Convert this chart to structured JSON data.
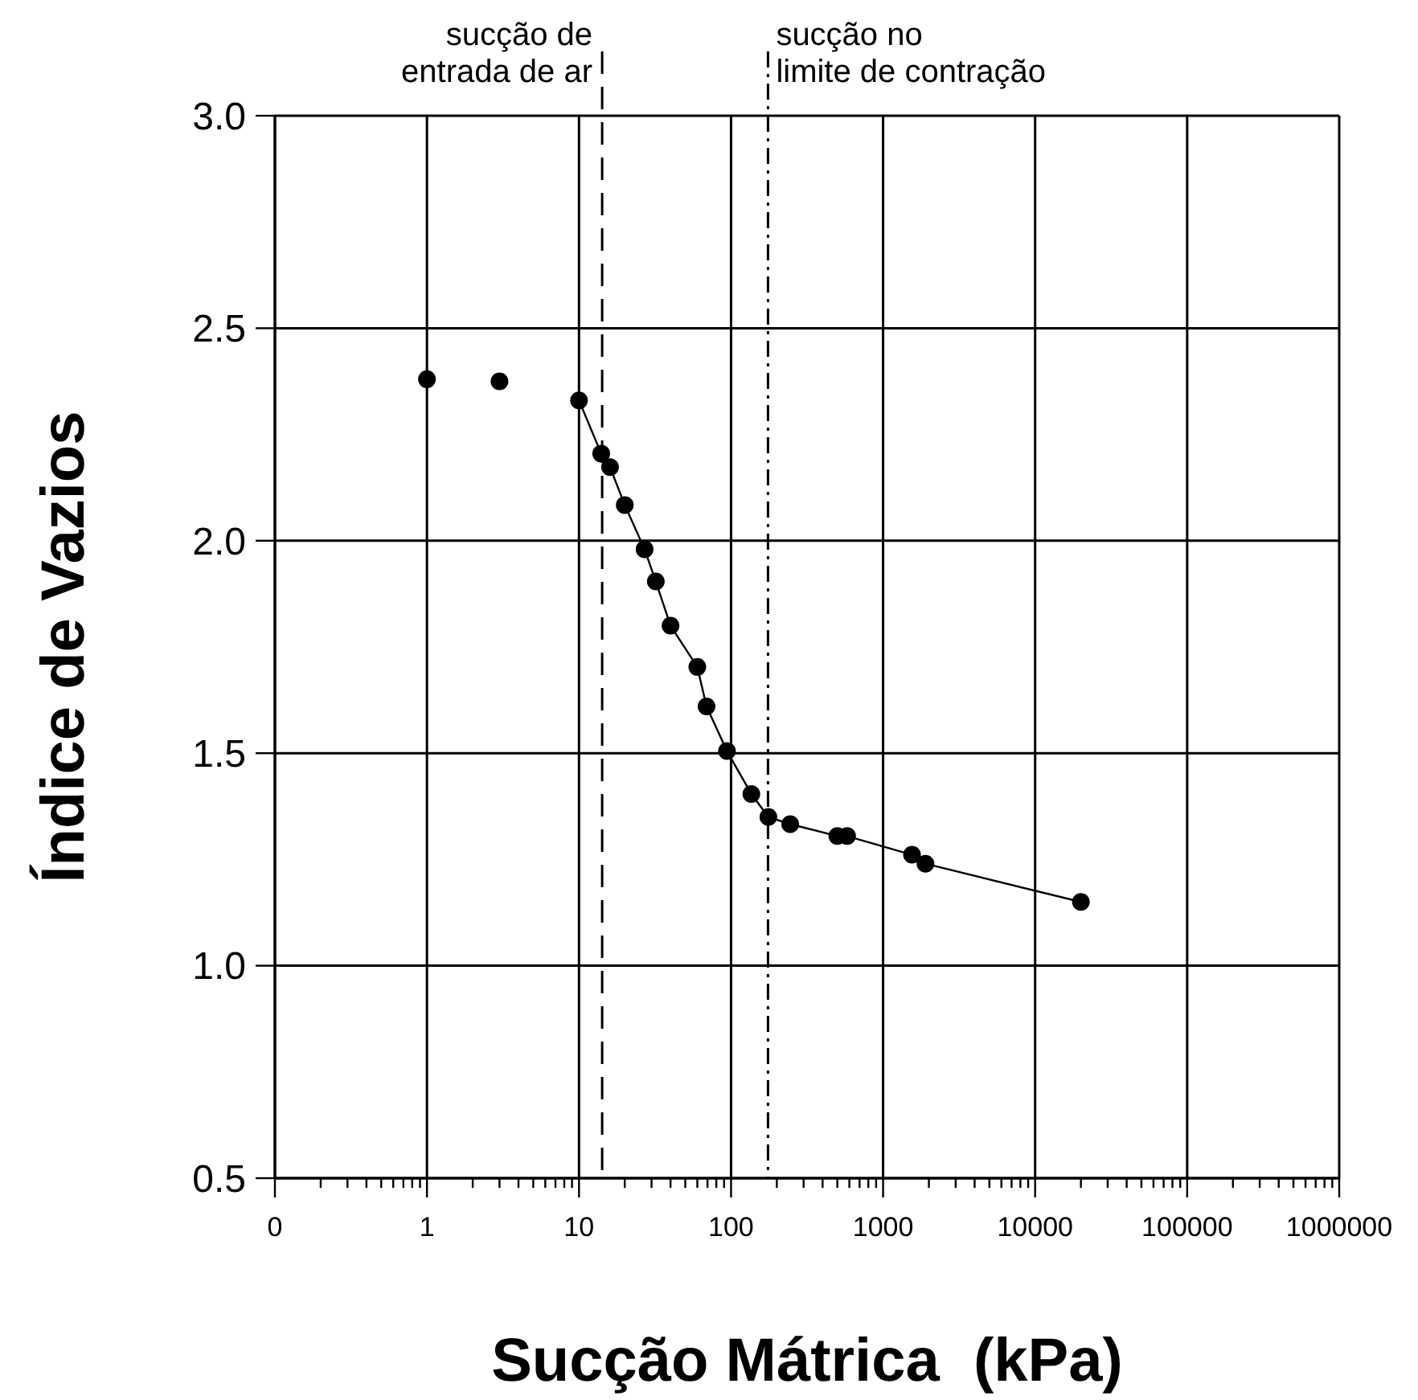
{
  "chart_data": {
    "type": "line",
    "xlabel": "Sucção Mátrica  (kPa)",
    "ylabel": "Índice de Vazios",
    "log": "x",
    "grid": true,
    "marker": "circle",
    "line_style": "solid",
    "xlim": [
      0.1,
      1000000
    ],
    "ylim": [
      0.5,
      3.0
    ],
    "xticks": [
      {
        "value": 0.1,
        "label": "0"
      },
      {
        "value": 0.2,
        "label": null
      },
      {
        "value": 0.3,
        "label": null
      },
      {
        "value": 0.4,
        "label": null
      },
      {
        "value": 0.5,
        "label": null
      },
      {
        "value": 0.6,
        "label": null
      },
      {
        "value": 0.7,
        "label": null
      },
      {
        "value": 0.8,
        "label": null
      },
      {
        "value": 0.9,
        "label": null
      },
      1,
      {
        "value": 2,
        "label": null
      },
      {
        "value": 3,
        "label": null
      },
      {
        "value": 4,
        "label": null
      },
      {
        "value": 5,
        "label": null
      },
      {
        "value": 6,
        "label": null
      },
      {
        "value": 7,
        "label": null
      },
      {
        "value": 8,
        "label": null
      },
      {
        "value": 9,
        "label": null
      },
      10,
      {
        "value": 20,
        "label": null
      },
      {
        "value": 30,
        "label": null
      },
      {
        "value": 40,
        "label": null
      },
      {
        "value": 50,
        "label": null
      },
      {
        "value": 60,
        "label": null
      },
      {
        "value": 70,
        "label": null
      },
      {
        "value": 80,
        "label": null
      },
      {
        "value": 90,
        "label": null
      },
      100,
      {
        "value": 200,
        "label": null
      },
      {
        "value": 300,
        "label": null
      },
      {
        "value": 400,
        "label": null
      },
      {
        "value": 500,
        "label": null
      },
      {
        "value": 600,
        "label": null
      },
      {
        "value": 700,
        "label": null
      },
      {
        "value": 800,
        "label": null
      },
      {
        "value": 900,
        "label": null
      },
      1000,
      {
        "value": 2000,
        "label": null
      },
      {
        "value": 3000,
        "label": null
      },
      {
        "value": 4000,
        "label": null
      },
      {
        "value": 5000,
        "label": null
      },
      {
        "value": 6000,
        "label": null
      },
      {
        "value": 7000,
        "label": null
      },
      {
        "value": 8000,
        "label": null
      },
      {
        "value": 9000,
        "label": null
      },
      10000,
      {
        "value": 20000,
        "label": null
      },
      {
        "value": 30000,
        "label": null
      },
      {
        "value": 40000,
        "label": null
      },
      {
        "value": 50000,
        "label": null
      },
      {
        "value": 60000,
        "label": null
      },
      {
        "value": 70000,
        "label": null
      },
      {
        "value": 80000,
        "label": null
      },
      {
        "value": 90000,
        "label": null
      },
      100000,
      {
        "value": 200000,
        "label": null
      },
      {
        "value": 300000,
        "label": null
      },
      {
        "value": 400000,
        "label": null
      },
      {
        "value": 500000,
        "label": null
      },
      {
        "value": 600000,
        "label": null
      },
      {
        "value": 700000,
        "label": null
      },
      {
        "value": 800000,
        "label": null
      },
      {
        "value": 900000,
        "label": null
      },
      1000000
    ],
    "yticks": [
      {
        "value": 0.5,
        "label": "0.5"
      },
      {
        "value": 1,
        "label": "1.0"
      },
      {
        "value": 1.5,
        "label": "1.5"
      },
      {
        "value": 2,
        "label": "2.0"
      },
      {
        "value": 2.5,
        "label": "2.5"
      },
      {
        "value": 3,
        "label": "3.0"
      }
    ],
    "series": [
      {
        "type": "scatter",
        "color": "#000000",
        "x": [
          1,
          3
        ],
        "values": [
          2.38,
          2.375
        ]
      },
      {
        "color": "#000000",
        "x": [
          10,
          14,
          16,
          20,
          27,
          32,
          40,
          60,
          69,
          94,
          136,
          176,
          245,
          500,
          580,
          1550,
          1900,
          20000
        ],
        "values": [
          2.33,
          2.205,
          2.173,
          2.084,
          1.98,
          1.904,
          1.8,
          1.703,
          1.61,
          1.505,
          1.404,
          1.35,
          1.333,
          1.305,
          1.305,
          1.261,
          1.24,
          1.15
        ]
      }
    ],
    "ref_lines": [
      {
        "axis": "x",
        "value": 14.2,
        "label": "sucção de\nentrada de ar",
        "line_style": "dashed",
        "color": "#000000"
      },
      {
        "axis": "x",
        "value": 175,
        "label": "sucção no\nlimite de contração",
        "line_style": "dashdot",
        "color": "#000000"
      }
    ]
  }
}
